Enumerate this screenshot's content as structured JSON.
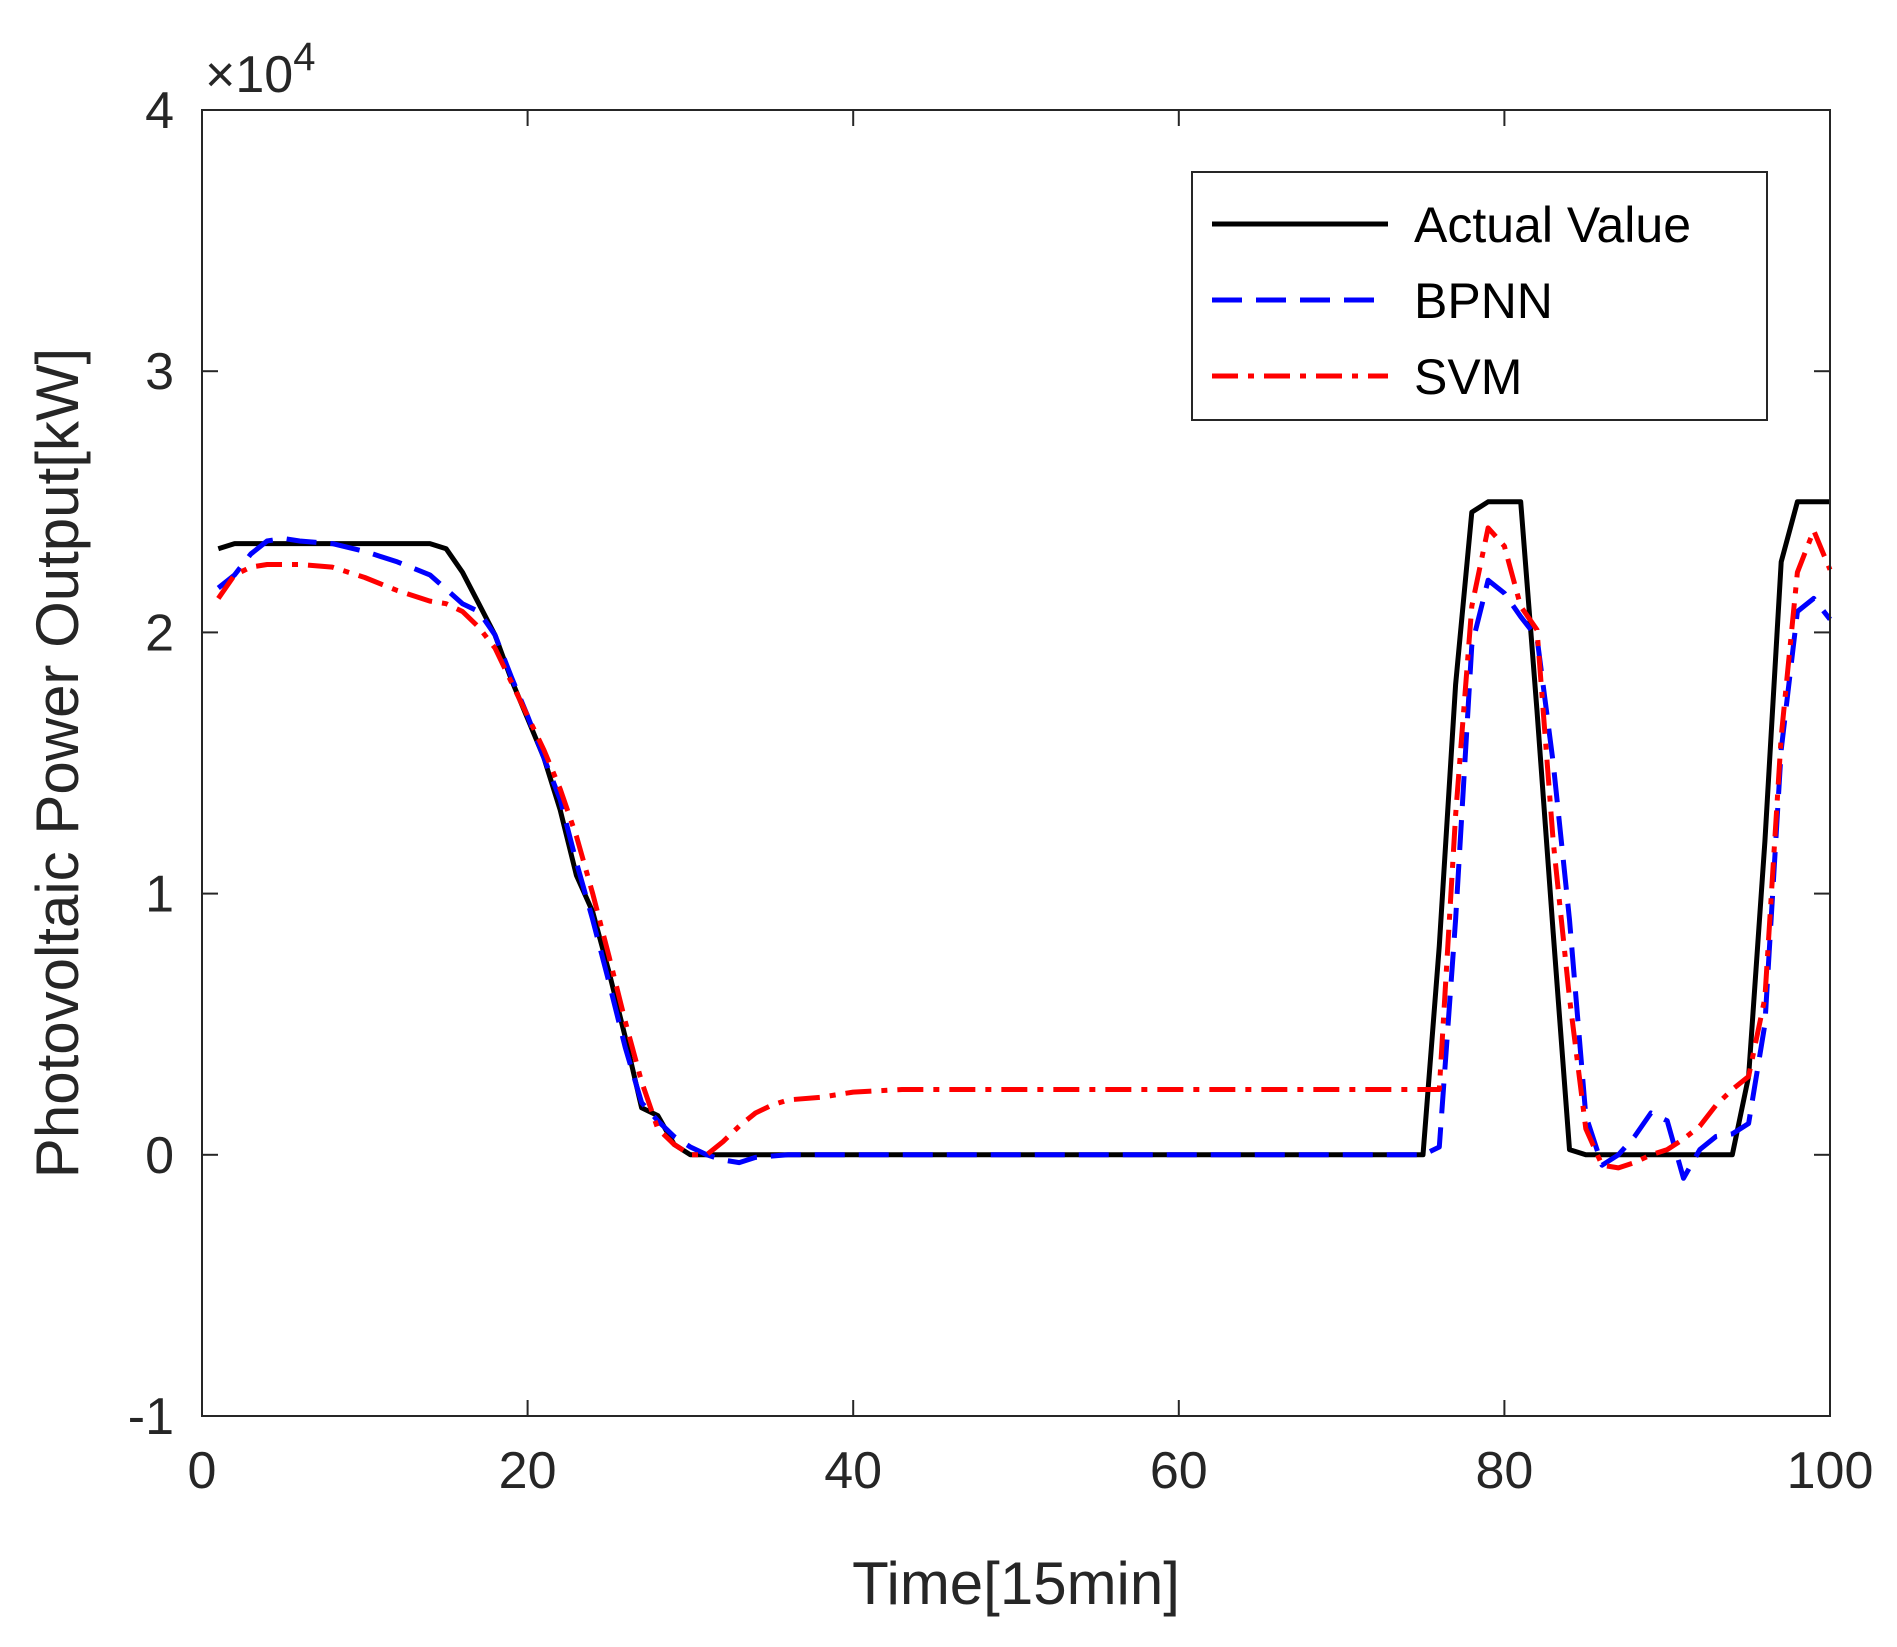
{
  "chart_data": {
    "type": "line",
    "title": "",
    "xlabel": "Time[15min]",
    "ylabel": "Photovoltaic Power Output[kW]",
    "xlim": [
      0,
      100
    ],
    "ylim": [
      -10000,
      40000
    ],
    "xticks": [
      0,
      20,
      40,
      60,
      80,
      100
    ],
    "xtick_labels": [
      "0",
      "20",
      "40",
      "60",
      "80",
      "100"
    ],
    "yticks": [
      -10000,
      0,
      10000,
      20000,
      30000,
      40000
    ],
    "ytick_labels": [
      "-1",
      "0",
      "1",
      "2",
      "3",
      "4"
    ],
    "y_multiplier": {
      "times": "×",
      "base": "10",
      "exponent": "4"
    },
    "grid": false,
    "legend_position": "top-right",
    "series": [
      {
        "name": "Actual Value",
        "color": "#000000",
        "style": "solid",
        "points": [
          [
            1,
            23200
          ],
          [
            2,
            23400
          ],
          [
            5,
            23400
          ],
          [
            10,
            23400
          ],
          [
            14,
            23400
          ],
          [
            15,
            23200
          ],
          [
            16,
            22300
          ],
          [
            17,
            21100
          ],
          [
            18,
            19900
          ],
          [
            19,
            18200
          ],
          [
            20,
            16700
          ],
          [
            21,
            15200
          ],
          [
            22,
            13200
          ],
          [
            23,
            10700
          ],
          [
            24,
            9300
          ],
          [
            25,
            7000
          ],
          [
            26,
            4500
          ],
          [
            27,
            1800
          ],
          [
            28,
            1500
          ],
          [
            29,
            400
          ],
          [
            30,
            0
          ],
          [
            31,
            0
          ],
          [
            32,
            0
          ],
          [
            35,
            0
          ],
          [
            40,
            0
          ],
          [
            50,
            0
          ],
          [
            60,
            0
          ],
          [
            70,
            0
          ],
          [
            75,
            0
          ],
          [
            76,
            8000
          ],
          [
            77,
            18000
          ],
          [
            78,
            24600
          ],
          [
            79,
            25000
          ],
          [
            80,
            25000
          ],
          [
            81,
            25000
          ],
          [
            82,
            17000
          ],
          [
            83,
            8500
          ],
          [
            84,
            200
          ],
          [
            85,
            0
          ],
          [
            90,
            0
          ],
          [
            94,
            0
          ],
          [
            95,
            3000
          ],
          [
            96,
            12000
          ],
          [
            97,
            22700
          ],
          [
            98,
            25000
          ],
          [
            99,
            25000
          ],
          [
            100,
            25000
          ]
        ]
      },
      {
        "name": "BPNN",
        "color": "#0000ff",
        "style": "dashed",
        "points": [
          [
            1,
            21700
          ],
          [
            2,
            22200
          ],
          [
            3,
            23000
          ],
          [
            4,
            23500
          ],
          [
            5,
            23600
          ],
          [
            6,
            23500
          ],
          [
            8,
            23400
          ],
          [
            10,
            23100
          ],
          [
            12,
            22700
          ],
          [
            14,
            22200
          ],
          [
            16,
            21100
          ],
          [
            17,
            20800
          ],
          [
            18,
            19900
          ],
          [
            19,
            18300
          ],
          [
            20,
            16800
          ],
          [
            21,
            15200
          ],
          [
            22,
            13600
          ],
          [
            23,
            11200
          ],
          [
            24,
            9000
          ],
          [
            25,
            6600
          ],
          [
            26,
            4100
          ],
          [
            27,
            2000
          ],
          [
            28,
            1300
          ],
          [
            29,
            700
          ],
          [
            30,
            300
          ],
          [
            31,
            0
          ],
          [
            32,
            -200
          ],
          [
            33,
            -300
          ],
          [
            34,
            -100
          ],
          [
            36,
            0
          ],
          [
            40,
            0
          ],
          [
            50,
            0
          ],
          [
            60,
            0
          ],
          [
            70,
            0
          ],
          [
            75,
            0
          ],
          [
            76,
            300
          ],
          [
            77,
            9000
          ],
          [
            78,
            19500
          ],
          [
            79,
            22000
          ],
          [
            80,
            21500
          ],
          [
            81,
            20600
          ],
          [
            82,
            19800
          ],
          [
            83,
            15000
          ],
          [
            84,
            9000
          ],
          [
            85,
            1500
          ],
          [
            86,
            -400
          ],
          [
            87,
            0
          ],
          [
            88,
            700
          ],
          [
            89,
            1600
          ],
          [
            90,
            1300
          ],
          [
            91,
            -900
          ],
          [
            92,
            200
          ],
          [
            93,
            700
          ],
          [
            94,
            800
          ],
          [
            95,
            1200
          ],
          [
            96,
            5000
          ],
          [
            97,
            15500
          ],
          [
            98,
            20800
          ],
          [
            99,
            21300
          ],
          [
            100,
            20500
          ]
        ]
      },
      {
        "name": "SVM",
        "color": "#ff0000",
        "style": "dashdot",
        "points": [
          [
            1,
            21300
          ],
          [
            2,
            22200
          ],
          [
            3,
            22500
          ],
          [
            4,
            22600
          ],
          [
            6,
            22600
          ],
          [
            8,
            22500
          ],
          [
            10,
            22100
          ],
          [
            12,
            21600
          ],
          [
            14,
            21200
          ],
          [
            15,
            21100
          ],
          [
            16,
            20800
          ],
          [
            17,
            20200
          ],
          [
            18,
            19400
          ],
          [
            19,
            18100
          ],
          [
            20,
            16800
          ],
          [
            21,
            15500
          ],
          [
            22,
            14000
          ],
          [
            23,
            12200
          ],
          [
            24,
            10000
          ],
          [
            25,
            7600
          ],
          [
            26,
            5100
          ],
          [
            27,
            2800
          ],
          [
            28,
            1000
          ],
          [
            29,
            400
          ],
          [
            30,
            0
          ],
          [
            31,
            0
          ],
          [
            32,
            500
          ],
          [
            33,
            1100
          ],
          [
            34,
            1600
          ],
          [
            35,
            1900
          ],
          [
            36,
            2100
          ],
          [
            38,
            2200
          ],
          [
            40,
            2400
          ],
          [
            43,
            2500
          ],
          [
            45,
            2500
          ],
          [
            50,
            2500
          ],
          [
            60,
            2500
          ],
          [
            70,
            2500
          ],
          [
            75,
            2500
          ],
          [
            76,
            2500
          ],
          [
            77,
            13000
          ],
          [
            78,
            21000
          ],
          [
            79,
            24000
          ],
          [
            80,
            23300
          ],
          [
            81,
            21000
          ],
          [
            82,
            20100
          ],
          [
            83,
            12000
          ],
          [
            84,
            6000
          ],
          [
            85,
            1000
          ],
          [
            86,
            -400
          ],
          [
            87,
            -500
          ],
          [
            88,
            -300
          ],
          [
            89,
            0
          ],
          [
            90,
            200
          ],
          [
            91,
            600
          ],
          [
            92,
            1100
          ],
          [
            93,
            1900
          ],
          [
            94,
            2500
          ],
          [
            95,
            3000
          ],
          [
            96,
            6000
          ],
          [
            97,
            16000
          ],
          [
            98,
            22300
          ],
          [
            99,
            23900
          ],
          [
            100,
            22400
          ]
        ]
      }
    ]
  }
}
